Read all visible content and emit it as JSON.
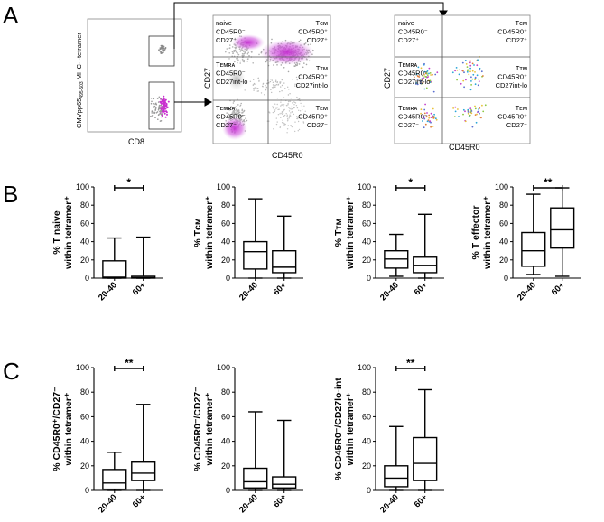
{
  "panels": {
    "A": {
      "label": "A",
      "tetramer_plot": {
        "ylabel": "CMVpp65",
        "ylabel_sub": "495-503",
        "ylabel_rest": " MHC-I-tetramer",
        "xlabel": "CD8"
      },
      "gating_plot": {
        "xlabel": "CD45R0",
        "ylabel": "CD27",
        "gates": [
          {
            "name": "naive",
            "lines": [
              "naive",
              "CD45R0⁻",
              "CD27⁺"
            ],
            "pos": "tl"
          },
          {
            "name": "tcm",
            "lines": [
              "Tᴄᴍ",
              "CD45R0⁺",
              "CD27⁺"
            ],
            "pos": "tr"
          },
          {
            "name": "temra-int",
            "lines": [
              "Tᴇᴍʀᴀ",
              "CD45R0⁻",
              "CD27int-lo"
            ],
            "pos": "ml"
          },
          {
            "name": "ttm",
            "lines": [
              "Tᴛᴍ",
              "CD45R0⁺",
              "CD27int-lo"
            ],
            "pos": "mr"
          },
          {
            "name": "temra",
            "lines": [
              "Tᴇᴍʀᴀ",
              "CD45R0⁻",
              "CD27⁻"
            ],
            "pos": "bl"
          },
          {
            "name": "tem",
            "lines": [
              "Tᴇᴍ",
              "CD45R0⁺",
              "CD27⁻"
            ],
            "pos": "br"
          }
        ]
      },
      "tetramer_gating_plot": {
        "xlabel": "CD45R0",
        "ylabel": "CD27"
      }
    },
    "B": {
      "label": "B"
    },
    "C": {
      "label": "C"
    }
  },
  "chart_data": [
    {
      "type": "box",
      "panel": "B",
      "ylabel_line1": "% T naive",
      "ylabel_line2": "within tetramer⁺",
      "categories": [
        "20-40",
        "60+"
      ],
      "ylim": [
        0,
        100
      ],
      "yticks": [
        0,
        20,
        40,
        60,
        80,
        100
      ],
      "boxes": [
        {
          "category": "20-40",
          "min": 0,
          "q1": 0,
          "median": 1,
          "q3": 19,
          "max": 44
        },
        {
          "category": "60+",
          "min": 0,
          "q1": 0,
          "median": 0.5,
          "q3": 2,
          "max": 45
        }
      ],
      "significance": "*"
    },
    {
      "type": "box",
      "panel": "B",
      "ylabel_line1": "% Tᴄᴍ",
      "ylabel_line2": "within tetramer⁺",
      "categories": [
        "20-40",
        "60+"
      ],
      "ylim": [
        0,
        100
      ],
      "yticks": [
        0,
        20,
        40,
        60,
        80,
        100
      ],
      "boxes": [
        {
          "category": "20-40",
          "min": 0,
          "q1": 10,
          "median": 29,
          "q3": 40,
          "max": 87
        },
        {
          "category": "60+",
          "min": 0,
          "q1": 6,
          "median": 12,
          "q3": 30,
          "max": 68
        }
      ],
      "significance": ""
    },
    {
      "type": "box",
      "panel": "B",
      "ylabel_line1": "% Tᴛᴍ",
      "ylabel_line2": "within tetramer⁺",
      "categories": [
        "20-40",
        "60+"
      ],
      "ylim": [
        0,
        100
      ],
      "yticks": [
        0,
        20,
        40,
        60,
        80,
        100
      ],
      "boxes": [
        {
          "category": "20-40",
          "min": 2,
          "q1": 11,
          "median": 21,
          "q3": 30,
          "max": 48
        },
        {
          "category": "60+",
          "min": 0,
          "q1": 6,
          "median": 14,
          "q3": 23,
          "max": 70
        }
      ],
      "significance": "*"
    },
    {
      "type": "box",
      "panel": "B",
      "ylabel_line1": "% T effector",
      "ylabel_line2": "within tetramer⁺",
      "categories": [
        "20-40",
        "60+"
      ],
      "ylim": [
        0,
        100
      ],
      "yticks": [
        0,
        20,
        40,
        60,
        80,
        100
      ],
      "boxes": [
        {
          "category": "20-40",
          "min": 4,
          "q1": 13,
          "median": 30,
          "q3": 50,
          "max": 92
        },
        {
          "category": "60+",
          "min": 2,
          "q1": 33,
          "median": 53,
          "q3": 77,
          "max": 99
        }
      ],
      "significance": "**"
    },
    {
      "type": "box",
      "panel": "C",
      "ylabel_line1": "% CD45R0⁺/CD27⁻",
      "ylabel_line2": "within tetramer⁺",
      "categories": [
        "20-40",
        "60+"
      ],
      "ylim": [
        0,
        100
      ],
      "yticks": [
        0,
        20,
        40,
        60,
        80,
        100
      ],
      "boxes": [
        {
          "category": "20-40",
          "min": 0,
          "q1": 1,
          "median": 6,
          "q3": 17,
          "max": 31
        },
        {
          "category": "60+",
          "min": 0,
          "q1": 8,
          "median": 14,
          "q3": 23,
          "max": 70
        }
      ],
      "significance": "**"
    },
    {
      "type": "box",
      "panel": "C",
      "ylabel_line1": "% CD45R0⁻/CD27⁻",
      "ylabel_line2": "within tetramer⁺",
      "categories": [
        "20-40",
        "60+"
      ],
      "ylim": [
        0,
        100
      ],
      "yticks": [
        0,
        20,
        40,
        60,
        80,
        100
      ],
      "boxes": [
        {
          "category": "20-40",
          "min": 0,
          "q1": 2,
          "median": 7,
          "q3": 18,
          "max": 64
        },
        {
          "category": "60+",
          "min": 0,
          "q1": 2,
          "median": 5,
          "q3": 11,
          "max": 57
        }
      ],
      "significance": ""
    },
    {
      "type": "box",
      "panel": "C",
      "ylabel_line1": "% CD45R0⁻/CD27lo-int",
      "ylabel_line2": "within tetramer⁺",
      "categories": [
        "20-40",
        "60+"
      ],
      "ylim": [
        0,
        100
      ],
      "yticks": [
        0,
        20,
        40,
        60,
        80,
        100
      ],
      "boxes": [
        {
          "category": "20-40",
          "min": 0,
          "q1": 3,
          "median": 10,
          "q3": 20,
          "max": 52
        },
        {
          "category": "60+",
          "min": 0,
          "q1": 8,
          "median": 22,
          "q3": 43,
          "max": 82
        }
      ],
      "significance": "**"
    }
  ]
}
